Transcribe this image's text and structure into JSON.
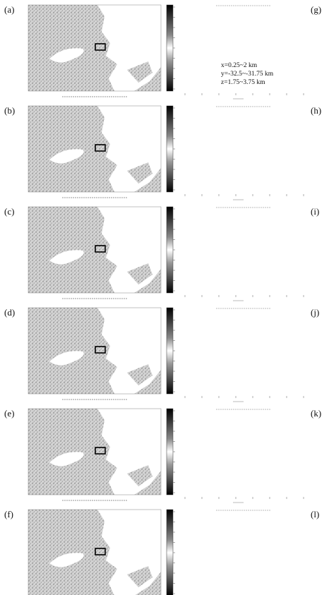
{
  "left_panels": [
    {
      "label": "(a)"
    },
    {
      "label": "(b)"
    },
    {
      "label": "(c)"
    },
    {
      "label": "(d)"
    },
    {
      "label": "(e)"
    },
    {
      "label": "(f)"
    }
  ],
  "right_panels": [
    {
      "label": "(g)"
    },
    {
      "label": "(h)"
    },
    {
      "label": "(i)"
    },
    {
      "label": "(j)"
    },
    {
      "label": "(k)"
    },
    {
      "label": "(l)"
    }
  ],
  "annotation": [
    "x=0.25~2 km",
    "y=-32.5~-31.75 km",
    "z=1.75~3.75 km"
  ]
}
